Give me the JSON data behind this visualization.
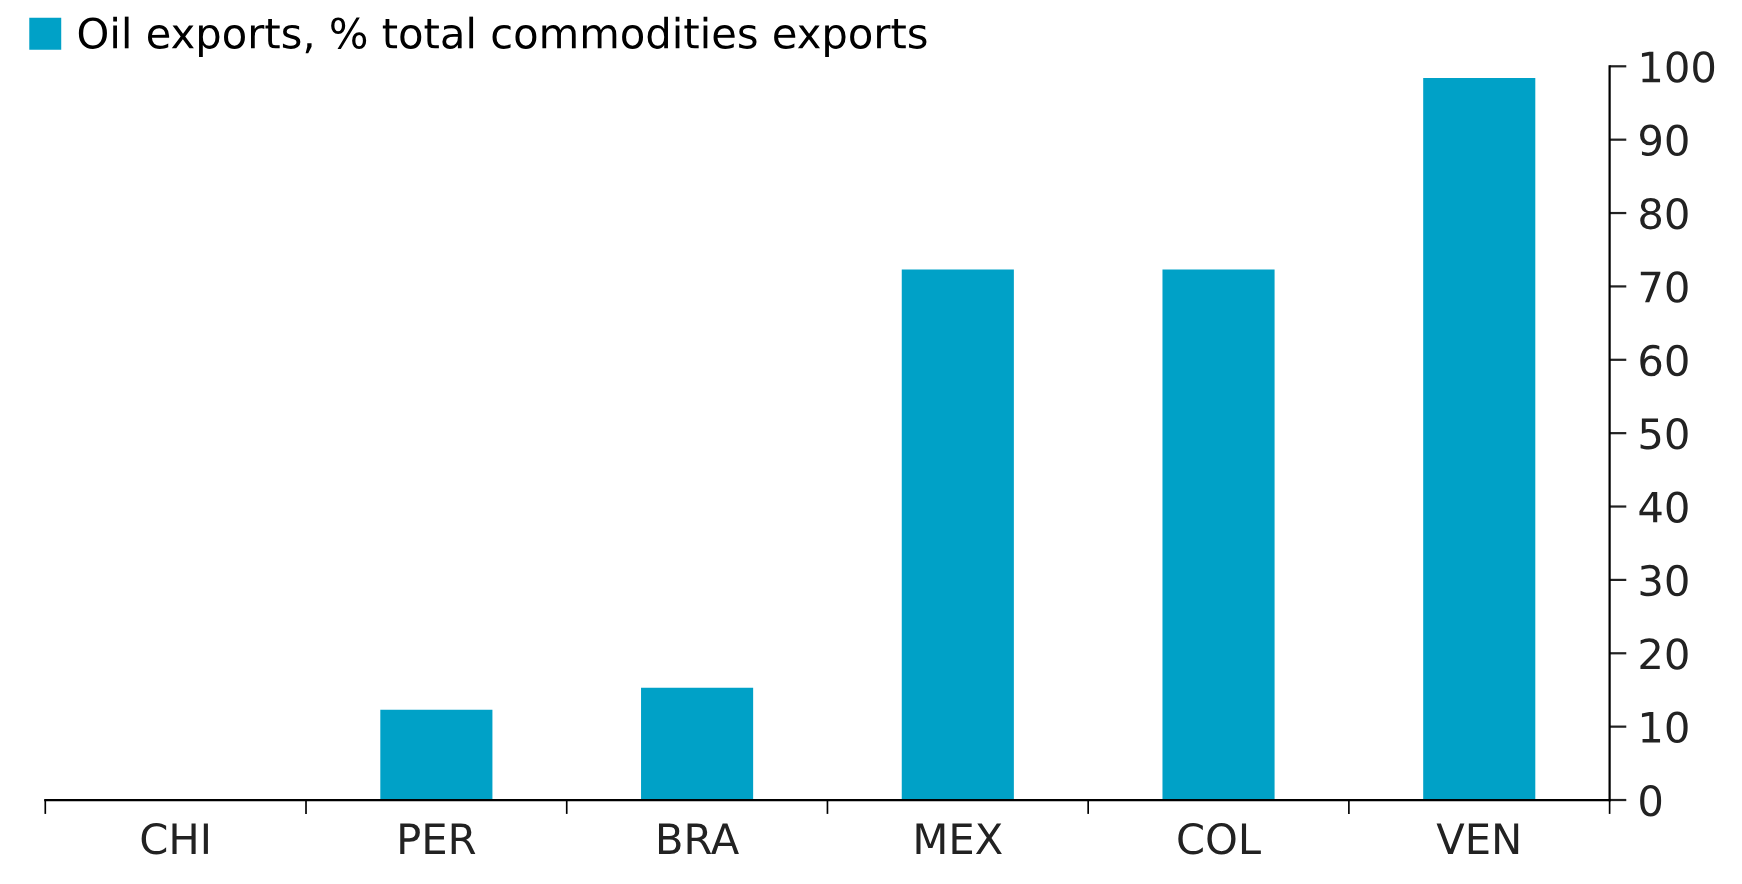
{
  "chart_data": {
    "type": "bar",
    "categories": [
      "CHI",
      "PER",
      "BRA",
      "MEX",
      "COL",
      "VEN"
    ],
    "series": [
      {
        "name": "Oil exports, % total commodities exports",
        "color": "#00a1c7",
        "values": [
          0,
          12.3,
          15.3,
          72.3,
          72.3,
          98.4
        ]
      }
    ],
    "ylim": [
      0,
      100
    ],
    "yticks": [
      0,
      10,
      20,
      30,
      40,
      50,
      60,
      70,
      80,
      90,
      100
    ],
    "grid": false,
    "legend": "top left"
  }
}
